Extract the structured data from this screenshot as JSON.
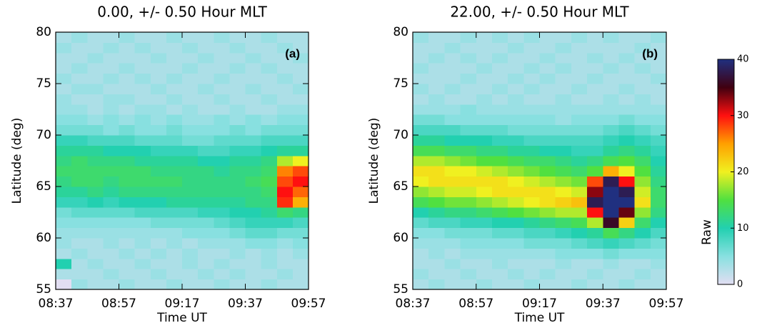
{
  "chart_data": [
    {
      "type": "heatmap",
      "title": "0.00, +/-  0.50 Hour MLT",
      "annotation": "(a)",
      "x_label": "Time UT",
      "y_label": "Latitude (deg)",
      "x": [
        "08:37",
        "08:42",
        "08:47",
        "08:52",
        "08:57",
        "09:02",
        "09:07",
        "09:12",
        "09:17",
        "09:22",
        "09:27",
        "09:32",
        "09:37",
        "09:42",
        "09:47",
        "09:52"
      ],
      "y": [
        55,
        56,
        57,
        58,
        59,
        60,
        61,
        62,
        63,
        64,
        65,
        66,
        67,
        68,
        69,
        70,
        71,
        72,
        73,
        74,
        75,
        76,
        77,
        78,
        79
      ],
      "xlim": [
        "08:37",
        "09:57"
      ],
      "xticks": [
        "08:37",
        "08:57",
        "09:17",
        "09:37",
        "09:57"
      ],
      "ylim": [
        55,
        80
      ],
      "yticks": [
        55,
        60,
        65,
        70,
        75,
        80
      ],
      "values": [
        [
          0,
          4,
          3,
          3,
          4,
          3,
          3,
          4,
          3,
          3,
          4,
          3,
          3,
          4,
          3,
          3
        ],
        [
          3,
          3,
          3,
          4,
          3,
          3,
          4,
          3,
          3,
          4,
          3,
          4,
          3,
          3,
          4,
          3
        ],
        [
          10,
          3,
          4,
          3,
          3,
          4,
          3,
          3,
          4,
          3,
          4,
          3,
          3,
          4,
          3,
          3
        ],
        [
          3,
          4,
          3,
          3,
          4,
          3,
          4,
          3,
          4,
          3,
          3,
          4,
          3,
          4,
          3,
          4
        ],
        [
          4,
          3,
          3,
          4,
          3,
          4,
          3,
          4,
          3,
          4,
          4,
          4,
          5,
          5,
          4,
          5
        ],
        [
          4,
          4,
          4,
          4,
          4,
          4,
          4,
          4,
          5,
          5,
          5,
          6,
          7,
          7,
          6,
          6
        ],
        [
          5,
          5,
          5,
          5,
          5,
          5,
          6,
          6,
          6,
          6,
          7,
          8,
          9,
          9,
          9,
          8
        ],
        [
          6,
          7,
          7,
          7,
          7,
          8,
          8,
          8,
          8,
          9,
          9,
          10,
          10,
          11,
          13,
          12
        ],
        [
          9,
          9,
          10,
          9,
          10,
          10,
          10,
          11,
          11,
          11,
          11,
          11,
          12,
          12,
          29,
          24
        ],
        [
          11,
          11,
          12,
          11,
          12,
          12,
          12,
          12,
          12,
          12,
          12,
          12,
          12,
          13,
          30,
          27
        ],
        [
          12,
          13,
          13,
          12,
          13,
          13,
          13,
          13,
          12,
          12,
          12,
          12,
          13,
          14,
          28,
          30
        ],
        [
          13,
          13,
          13,
          13,
          13,
          13,
          12,
          12,
          12,
          12,
          11,
          12,
          12,
          13,
          26,
          28
        ],
        [
          12,
          13,
          12,
          12,
          12,
          11,
          11,
          11,
          11,
          10,
          10,
          11,
          11,
          12,
          18,
          20
        ],
        [
          11,
          11,
          11,
          10,
          10,
          10,
          9,
          9,
          9,
          8,
          8,
          9,
          9,
          10,
          11,
          11
        ],
        [
          9,
          9,
          8,
          8,
          8,
          7,
          7,
          7,
          6,
          6,
          7,
          7,
          7,
          8,
          8,
          8
        ],
        [
          6,
          6,
          6,
          5,
          6,
          5,
          5,
          6,
          5,
          5,
          5,
          6,
          5,
          6,
          6,
          6
        ],
        [
          5,
          5,
          4,
          5,
          4,
          5,
          4,
          5,
          4,
          4,
          5,
          4,
          5,
          4,
          5,
          5
        ],
        [
          4,
          4,
          3,
          4,
          3,
          4,
          4,
          3,
          4,
          3,
          3,
          4,
          3,
          3,
          4,
          4
        ],
        [
          4,
          3,
          3,
          4,
          4,
          3,
          3,
          4,
          3,
          3,
          4,
          3,
          3,
          4,
          3,
          3
        ],
        [
          3,
          4,
          4,
          3,
          3,
          3,
          4,
          3,
          3,
          4,
          3,
          3,
          4,
          3,
          3,
          4
        ],
        [
          4,
          3,
          3,
          4,
          3,
          4,
          3,
          4,
          3,
          3,
          4,
          3,
          3,
          3,
          4,
          3
        ],
        [
          3,
          4,
          3,
          3,
          4,
          3,
          3,
          3,
          4,
          3,
          3,
          4,
          3,
          4,
          3,
          3
        ],
        [
          3,
          3,
          4,
          3,
          3,
          3,
          4,
          3,
          3,
          4,
          3,
          3,
          4,
          3,
          3,
          4
        ],
        [
          4,
          3,
          3,
          4,
          3,
          4,
          3,
          3,
          4,
          3,
          3,
          4,
          3,
          3,
          4,
          3
        ],
        [
          3,
          4,
          3,
          3,
          4,
          3,
          3,
          4,
          3,
          3,
          4,
          3,
          3,
          4,
          3,
          3
        ]
      ]
    },
    {
      "type": "heatmap",
      "title": "22.00, +/-  0.50 Hour MLT",
      "annotation": "(b)",
      "x_label": "Time UT",
      "y_label": "Latitude (deg)",
      "x": [
        "08:37",
        "08:42",
        "08:47",
        "08:52",
        "08:57",
        "09:02",
        "09:07",
        "09:12",
        "09:17",
        "09:22",
        "09:27",
        "09:32",
        "09:37",
        "09:42",
        "09:47",
        "09:52"
      ],
      "y": [
        55,
        56,
        57,
        58,
        59,
        60,
        61,
        62,
        63,
        64,
        65,
        66,
        67,
        68,
        69,
        70,
        71,
        72,
        73,
        74,
        75,
        76,
        77,
        78,
        79
      ],
      "xlim": [
        "08:37",
        "09:57"
      ],
      "xticks": [
        "08:37",
        "08:57",
        "09:17",
        "09:37",
        "09:57"
      ],
      "ylim": [
        55,
        80
      ],
      "yticks": [
        55,
        60,
        65,
        70,
        75,
        80
      ],
      "values": [
        [
          3,
          4,
          3,
          3,
          4,
          3,
          3,
          4,
          3,
          3,
          4,
          3,
          3,
          4,
          3,
          3
        ],
        [
          4,
          3,
          3,
          4,
          3,
          3,
          4,
          3,
          4,
          3,
          3,
          4,
          3,
          3,
          4,
          3
        ],
        [
          3,
          3,
          4,
          3,
          3,
          4,
          3,
          3,
          3,
          4,
          3,
          3,
          4,
          3,
          3,
          4
        ],
        [
          3,
          4,
          3,
          4,
          4,
          4,
          4,
          4,
          4,
          5,
          5,
          5,
          6,
          5,
          5,
          5
        ],
        [
          4,
          4,
          4,
          5,
          5,
          5,
          5,
          6,
          6,
          6,
          7,
          8,
          9,
          8,
          7,
          6
        ],
        [
          5,
          5,
          6,
          6,
          6,
          7,
          7,
          8,
          8,
          9,
          10,
          11,
          14,
          12,
          10,
          8
        ],
        [
          7,
          8,
          8,
          9,
          9,
          10,
          10,
          11,
          12,
          13,
          14,
          18,
          36,
          22,
          13,
          10
        ],
        [
          10,
          11,
          12,
          12,
          13,
          14,
          15,
          16,
          17,
          18,
          18,
          30,
          40,
          34,
          17,
          12
        ],
        [
          14,
          15,
          16,
          16,
          17,
          18,
          19,
          20,
          21,
          22,
          23,
          38,
          40,
          40,
          21,
          13
        ],
        [
          17,
          18,
          19,
          19,
          20,
          21,
          21,
          21,
          21,
          20,
          19,
          33,
          40,
          38,
          19,
          13
        ],
        [
          20,
          21,
          21,
          21,
          21,
          21,
          20,
          19,
          18,
          17,
          16,
          28,
          38,
          30,
          17,
          12
        ],
        [
          21,
          21,
          20,
          20,
          19,
          18,
          17,
          16,
          15,
          14,
          13,
          15,
          24,
          20,
          15,
          11
        ],
        [
          18,
          18,
          17,
          16,
          15,
          15,
          14,
          13,
          13,
          12,
          11,
          12,
          14,
          15,
          13,
          10
        ],
        [
          14,
          14,
          13,
          13,
          12,
          12,
          11,
          11,
          10,
          10,
          9,
          9,
          11,
          12,
          11,
          9
        ],
        [
          11,
          11,
          10,
          10,
          10,
          9,
          9,
          8,
          8,
          8,
          8,
          8,
          9,
          10,
          9,
          8
        ],
        [
          8,
          8,
          8,
          7,
          7,
          7,
          6,
          6,
          6,
          6,
          6,
          6,
          7,
          8,
          7,
          6
        ],
        [
          6,
          6,
          5,
          5,
          5,
          5,
          5,
          5,
          5,
          4,
          5,
          5,
          5,
          6,
          5,
          5
        ],
        [
          4,
          4,
          4,
          5,
          4,
          4,
          4,
          4,
          4,
          4,
          4,
          4,
          4,
          4,
          4,
          4
        ],
        [
          3,
          4,
          3,
          3,
          4,
          3,
          4,
          3,
          3,
          4,
          3,
          3,
          4,
          3,
          4,
          3
        ],
        [
          4,
          3,
          4,
          3,
          3,
          4,
          3,
          4,
          3,
          3,
          4,
          3,
          3,
          4,
          3,
          3
        ],
        [
          3,
          3,
          3,
          4,
          3,
          3,
          4,
          3,
          4,
          3,
          3,
          4,
          3,
          3,
          3,
          4
        ],
        [
          4,
          3,
          3,
          3,
          4,
          3,
          3,
          4,
          3,
          4,
          3,
          3,
          4,
          3,
          4,
          3
        ],
        [
          3,
          4,
          3,
          4,
          3,
          4,
          3,
          3,
          4,
          3,
          3,
          4,
          3,
          4,
          3,
          3
        ],
        [
          3,
          3,
          4,
          3,
          3,
          3,
          4,
          3,
          3,
          4,
          3,
          3,
          3,
          3,
          4,
          3
        ],
        [
          4,
          3,
          3,
          4,
          3,
          4,
          3,
          4,
          3,
          3,
          4,
          3,
          4,
          3,
          3,
          4
        ]
      ]
    }
  ],
  "colorbar": {
    "label": "Raw",
    "zlim": [
      0,
      40
    ],
    "zticks": [
      0,
      10,
      20,
      30,
      40
    ],
    "colors": [
      "#e2def2",
      "#88e0e0",
      "#22d0b0",
      "#50e040",
      "#f0f020",
      "#ffa000",
      "#ff1010",
      "#400010",
      "#203080"
    ]
  }
}
